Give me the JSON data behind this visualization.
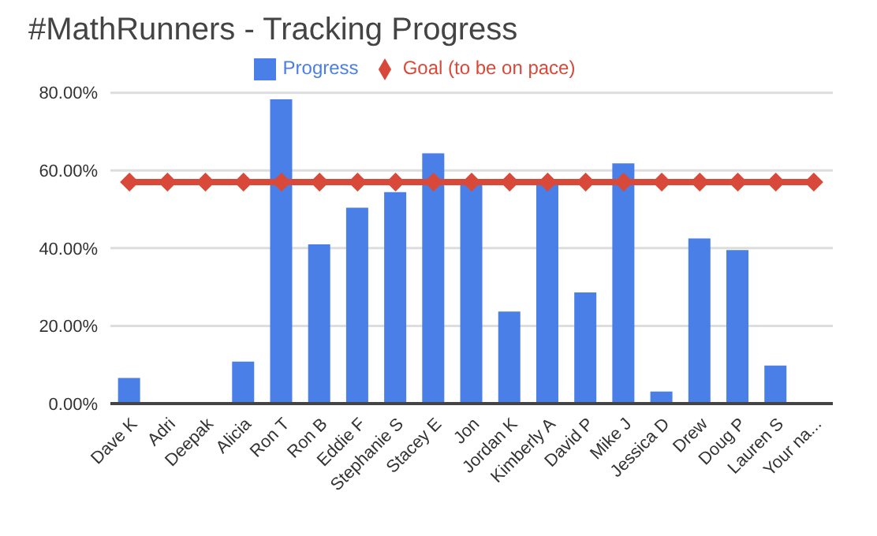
{
  "chart_data": {
    "type": "bar",
    "title": "#MathRunners - Tracking Progress",
    "categories": [
      "Dave K",
      "Adri",
      "Deepak",
      "Alicia",
      "Ron T",
      "Ron B",
      "Eddie F",
      "Stephanie S",
      "Stacey E",
      "Jon",
      "Jordan K",
      "Kimberly A",
      "David P",
      "Mike J",
      "Jessica D",
      "Drew",
      "Doug P",
      "Lauren S",
      "Your na..."
    ],
    "series": [
      {
        "name": "Progress",
        "color": "#4a7fe8",
        "values": [
          6.6,
          0,
          0,
          10.8,
          78.3,
          41,
          50.4,
          54.4,
          64.4,
          57,
          23.7,
          57,
          28.6,
          61.8,
          3.1,
          42.5,
          39.5,
          9.8,
          0
        ]
      },
      {
        "name": "Goal (to be on pace)",
        "type": "line",
        "color": "#d9493a",
        "values": [
          57,
          57,
          57,
          57,
          57,
          57,
          57,
          57,
          57,
          57,
          57,
          57,
          57,
          57,
          57,
          57,
          57,
          57,
          57
        ]
      }
    ],
    "ylim": [
      0,
      80
    ],
    "yticks": [
      {
        "value": 0,
        "label": "0.00%"
      },
      {
        "value": 20,
        "label": "20.00%"
      },
      {
        "value": 40,
        "label": "40.00%"
      },
      {
        "value": 60,
        "label": "60.00%"
      },
      {
        "value": 80,
        "label": "80.00%"
      }
    ],
    "grid": "y",
    "legend": "top",
    "marker": "diamond"
  }
}
